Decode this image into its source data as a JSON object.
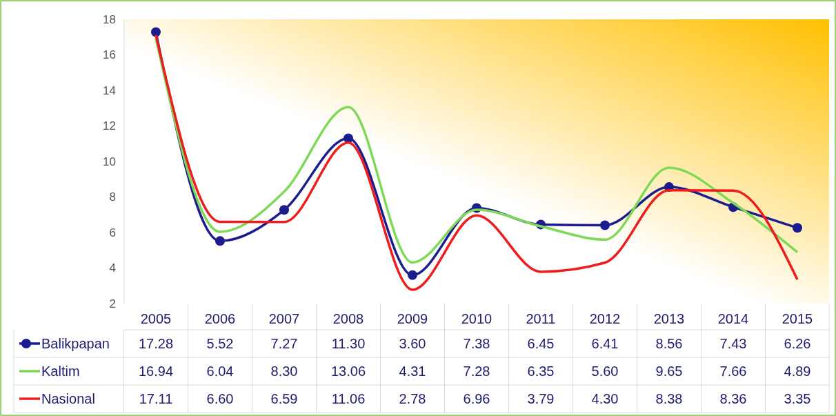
{
  "chart_data": {
    "type": "line",
    "categories": [
      "2005",
      "2006",
      "2007",
      "2008",
      "2009",
      "2010",
      "2011",
      "2012",
      "2013",
      "2014",
      "2015"
    ],
    "series": [
      {
        "name": "Balikpapan",
        "color": "#1c1c8f",
        "marker": "circle",
        "values": [
          17.28,
          5.52,
          7.27,
          11.3,
          3.6,
          7.38,
          6.45,
          6.41,
          8.56,
          7.43,
          6.26
        ],
        "value_labels": [
          "17.28",
          "5.52",
          "7.27",
          "11.30",
          "3.60",
          "7.38",
          "6.45",
          "6.41",
          "8.56",
          "7.43",
          "6.26"
        ]
      },
      {
        "name": "Kaltim",
        "color": "#7ed957",
        "marker": "none",
        "values": [
          16.94,
          6.04,
          8.3,
          13.06,
          4.31,
          7.28,
          6.35,
          5.6,
          9.65,
          7.66,
          4.89
        ],
        "value_labels": [
          "16.94",
          "6.04",
          "8.30",
          "13.06",
          "4.31",
          "7.28",
          "6.35",
          "5.60",
          "9.65",
          "7.66",
          "4.89"
        ]
      },
      {
        "name": "Nasional",
        "color": "#ee1c1c",
        "marker": "none",
        "values": [
          17.11,
          6.6,
          6.59,
          11.06,
          2.78,
          6.96,
          3.79,
          4.3,
          8.38,
          8.36,
          3.35
        ],
        "value_labels": [
          "17.11",
          "6.60",
          "6.59",
          "11.06",
          "2.78",
          "6.96",
          "3.79",
          "4.30",
          "8.38",
          "8.36",
          "3.35"
        ]
      }
    ],
    "ylim": [
      2,
      18
    ],
    "yticks": [
      2,
      4,
      6,
      8,
      10,
      12,
      14,
      16,
      18
    ],
    "legend": "bottom"
  }
}
